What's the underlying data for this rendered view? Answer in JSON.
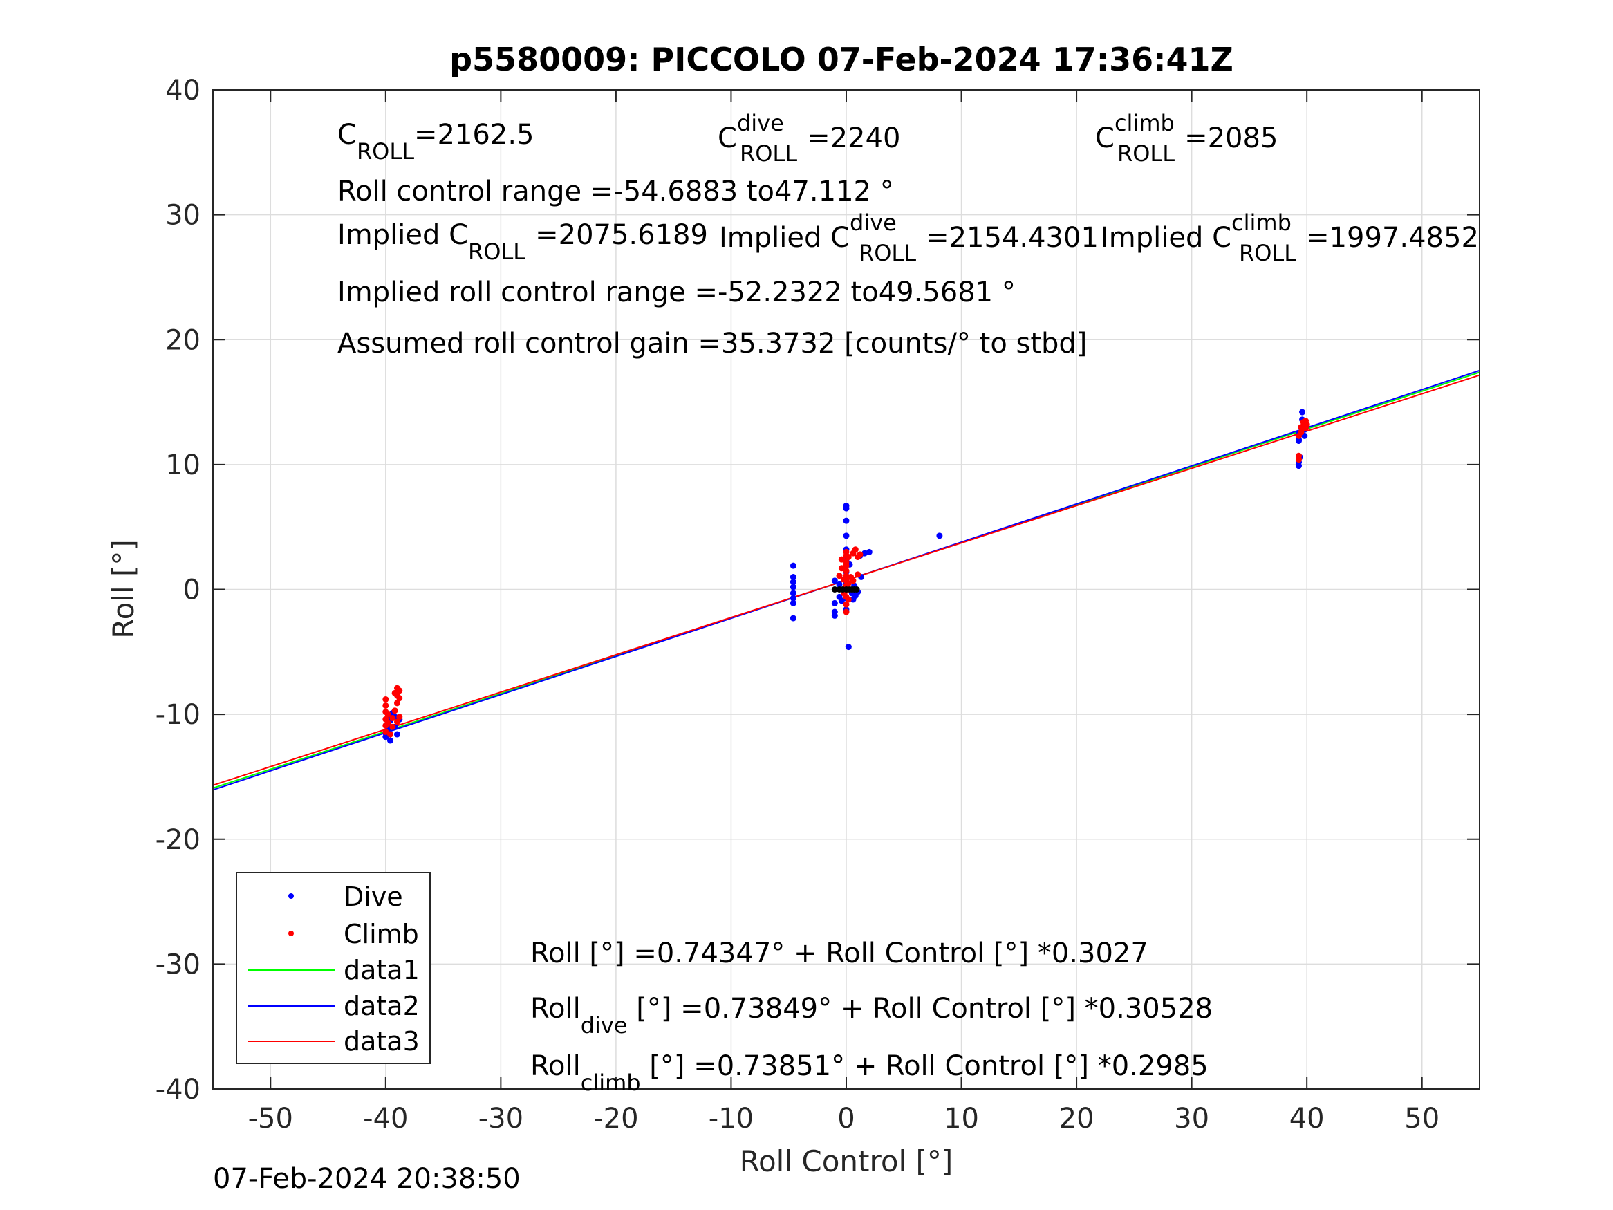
{
  "footer_timestamp": "07-Feb-2024 20:38:50",
  "colors": {
    "dive": "#0000ff",
    "climb": "#ff0000",
    "data1": "#00ff00",
    "data2": "#0000ff",
    "data3": "#ff0000",
    "grid": "#dddddd"
  },
  "annotations": {
    "c_roll": {
      "base": "C",
      "sub": "ROLL",
      "value": "=2162.5"
    },
    "c_roll_dive": {
      "base": "C",
      "sup": "dive",
      "sub": "ROLL",
      "value": "=2240"
    },
    "c_roll_climb": {
      "base": "C",
      "sup": "climb",
      "sub": "ROLL",
      "value": "=2085"
    },
    "range": "Roll control range =-54.6883 to47.112 °",
    "implied_c_roll": {
      "base": "Implied C",
      "sub": "ROLL",
      "value": "=2075.6189"
    },
    "implied_c_roll_dive": {
      "base": "Implied C",
      "sup": "dive",
      "sub": "ROLL",
      "value": "=2154.4301"
    },
    "implied_c_roll_climb": {
      "base": "Implied C",
      "sup": "climb",
      "sub": "ROLL",
      "value": "=1997.4852"
    },
    "implied_range": "Implied roll control range =-52.2322 to49.5681 °",
    "gain": "Assumed roll control gain =35.3732 [counts/° to stbd]",
    "fit_all": {
      "base": "Roll",
      "sub": "",
      "rest": " [°] =0.74347° + Roll Control [°] *0.3027"
    },
    "fit_dive": {
      "base": "Roll",
      "sub": "dive",
      "rest": " [°] =0.73849° + Roll Control [°] *0.30528"
    },
    "fit_climb": {
      "base": "Roll",
      "sub": "climb",
      "rest": " [°] =0.73851° + Roll Control [°] *0.2985"
    }
  },
  "chart_data": {
    "type": "scatter",
    "title": "p5580009: PICCOLO 07-Feb-2024 17:36:41Z",
    "xlabel": "Roll Control [°]",
    "ylabel": "Roll [°]",
    "xlim": [
      -55,
      55
    ],
    "ylim": [
      -40,
      40
    ],
    "xticks": [
      -50,
      -40,
      -30,
      -20,
      -10,
      0,
      10,
      20,
      30,
      40,
      50
    ],
    "yticks": [
      -40,
      -30,
      -20,
      -10,
      0,
      10,
      20,
      30,
      40
    ],
    "grid": true,
    "legend": {
      "placement": "bottom-left",
      "entries": [
        "Dive",
        "Climb",
        "data1",
        "data2",
        "data3"
      ]
    },
    "series": [
      {
        "name": "Dive",
        "kind": "points",
        "color": "#0000ff",
        "points": [
          [
            -40,
            -11.8
          ],
          [
            -40,
            -11.5
          ],
          [
            -39.8,
            -11.2
          ],
          [
            -39.8,
            -10.8
          ],
          [
            -39.6,
            -10.5
          ],
          [
            -39.6,
            -10.1
          ],
          [
            -39.4,
            -9.9
          ],
          [
            -39.2,
            -10.2
          ],
          [
            -39.2,
            -11.0
          ],
          [
            -39.0,
            -11.6
          ],
          [
            -39.6,
            -12.1
          ],
          [
            -38.8,
            -10.4
          ],
          [
            -4.6,
            1.9
          ],
          [
            -4.6,
            1.0
          ],
          [
            -4.6,
            0.6
          ],
          [
            -4.6,
            0.2
          ],
          [
            -4.6,
            -0.3
          ],
          [
            -4.6,
            -0.7
          ],
          [
            -4.6,
            -1.1
          ],
          [
            -4.6,
            -2.3
          ],
          [
            -1.0,
            0.7
          ],
          [
            -1.0,
            -1.1
          ],
          [
            -1.0,
            -1.8
          ],
          [
            -1.0,
            -2.1
          ],
          [
            -0.6,
            0.4
          ],
          [
            -0.6,
            -0.6
          ],
          [
            -0.4,
            -0.9
          ],
          [
            0.0,
            6.7
          ],
          [
            0.0,
            6.5
          ],
          [
            0.0,
            5.5
          ],
          [
            0.0,
            4.3
          ],
          [
            0.0,
            3.2
          ],
          [
            0.0,
            2.3
          ],
          [
            0.0,
            1.4
          ],
          [
            0.0,
            0.5
          ],
          [
            0.0,
            -0.7
          ],
          [
            0.0,
            -1.6
          ],
          [
            0.2,
            -4.6
          ],
          [
            0.3,
            2.0
          ],
          [
            0.5,
            -0.3
          ],
          [
            0.6,
            -0.8
          ],
          [
            0.7,
            0.3
          ],
          [
            0.8,
            -0.5
          ],
          [
            0.9,
            0.0
          ],
          [
            1.0,
            -0.2
          ],
          [
            1.2,
            2.7
          ],
          [
            1.3,
            1.0
          ],
          [
            1.6,
            2.9
          ],
          [
            2.0,
            3.0
          ],
          [
            8.1,
            4.3
          ],
          [
            39.3,
            12.0
          ],
          [
            39.3,
            12.5
          ],
          [
            39.3,
            11.9
          ],
          [
            39.3,
            10.2
          ],
          [
            39.3,
            9.9
          ],
          [
            39.4,
            10.6
          ],
          [
            39.6,
            14.2
          ],
          [
            39.6,
            13.6
          ],
          [
            39.6,
            13.0
          ],
          [
            39.8,
            12.3
          ],
          [
            39.8,
            12.8
          ],
          [
            39.9,
            13.2
          ]
        ]
      },
      {
        "name": "Climb",
        "kind": "points",
        "color": "#ff0000",
        "points": [
          [
            -40.0,
            -8.8
          ],
          [
            -40.0,
            -9.3
          ],
          [
            -40.0,
            -9.8
          ],
          [
            -40.0,
            -10.4
          ],
          [
            -40.0,
            -10.9
          ],
          [
            -40.0,
            -11.4
          ],
          [
            -39.8,
            -10.0
          ],
          [
            -39.8,
            -10.7
          ],
          [
            -39.6,
            -11.6
          ],
          [
            -39.4,
            -10.3
          ],
          [
            -39.4,
            -11.0
          ],
          [
            -39.2,
            -8.3
          ],
          [
            -39.2,
            -9.7
          ],
          [
            -39.0,
            -7.9
          ],
          [
            -39.0,
            -8.5
          ],
          [
            -39.0,
            -9.1
          ],
          [
            -39.0,
            -10.6
          ],
          [
            -38.8,
            -8.1
          ],
          [
            -38.8,
            -8.7
          ],
          [
            -38.8,
            -10.2
          ],
          [
            -0.6,
            1.1
          ],
          [
            -0.4,
            2.4
          ],
          [
            -0.4,
            1.7
          ],
          [
            -0.2,
            0.8
          ],
          [
            -0.2,
            -0.3
          ],
          [
            0.0,
            3.0
          ],
          [
            0.0,
            2.7
          ],
          [
            0.0,
            2.2
          ],
          [
            0.0,
            1.9
          ],
          [
            0.0,
            1.5
          ],
          [
            0.0,
            1.1
          ],
          [
            0.0,
            0.7
          ],
          [
            0.0,
            0.3
          ],
          [
            0.0,
            -0.1
          ],
          [
            0.0,
            -0.6
          ],
          [
            0.0,
            -1.2
          ],
          [
            0.0,
            -1.8
          ],
          [
            0.2,
            2.6
          ],
          [
            0.2,
            0.5
          ],
          [
            0.2,
            -0.8
          ],
          [
            0.4,
            1.0
          ],
          [
            0.6,
            2.9
          ],
          [
            0.6,
            0.7
          ],
          [
            0.8,
            3.2
          ],
          [
            1.0,
            2.6
          ],
          [
            1.2,
            2.8
          ],
          [
            1.0,
            1.2
          ],
          [
            39.3,
            10.7
          ],
          [
            39.3,
            10.4
          ],
          [
            39.3,
            12.3
          ],
          [
            39.5,
            13.0
          ],
          [
            39.5,
            12.6
          ],
          [
            39.7,
            13.4
          ],
          [
            39.7,
            13.1
          ],
          [
            39.9,
            13.5
          ],
          [
            39.9,
            12.9
          ],
          [
            40.0,
            13.2
          ]
        ]
      },
      {
        "name": "",
        "kind": "points",
        "color": "#000000",
        "points": [
          [
            -1.0,
            0.0
          ],
          [
            -0.6,
            0.0
          ],
          [
            -0.3,
            0.0
          ],
          [
            0.0,
            0.0
          ],
          [
            0.3,
            0.0
          ],
          [
            0.5,
            0.0
          ],
          [
            0.7,
            0.0
          ],
          [
            0.9,
            0.0
          ]
        ]
      },
      {
        "name": "data1",
        "kind": "line",
        "color": "#00ff00",
        "x": [
          -55,
          55
        ],
        "y": [
          -15.91,
          17.39
        ]
      },
      {
        "name": "data2",
        "kind": "line",
        "color": "#0000ff",
        "x": [
          -55,
          55
        ],
        "y": [
          -16.05,
          17.53
        ]
      },
      {
        "name": "data3",
        "kind": "line",
        "color": "#ff0000",
        "x": [
          -55,
          55
        ],
        "y": [
          -15.68,
          17.16
        ]
      }
    ]
  }
}
